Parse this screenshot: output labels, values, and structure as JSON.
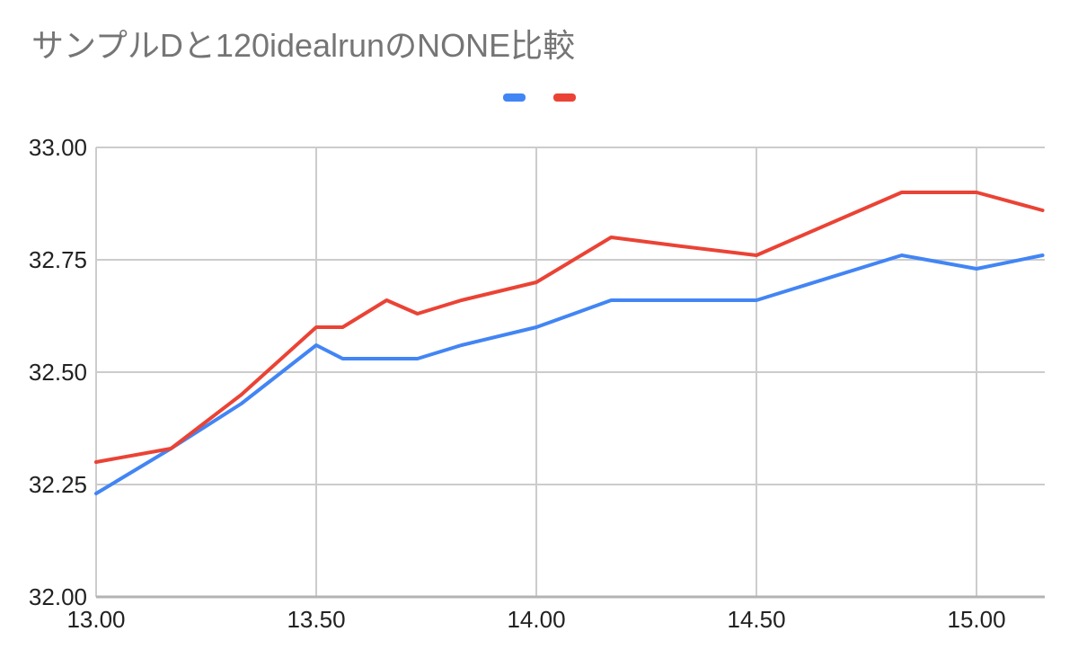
{
  "title": "サンプルDと120idealrunのNONE比較",
  "colors": {
    "background": "#ffffff",
    "title_text": "#757575",
    "axis_text": "#222222",
    "gridline": "#cccccc",
    "axis_line": "#b3b3b3",
    "series_blue": "#4285f4",
    "series_red": "#ea4335"
  },
  "legend": {
    "items": [
      {
        "label": "",
        "color": "#4285f4"
      },
      {
        "label": "",
        "color": "#ea4335"
      }
    ]
  },
  "chart_data": {
    "type": "line",
    "title": "サンプルDと120idealrunのNONE比較",
    "xlabel": "",
    "ylabel": "",
    "x": [
      13.0,
      13.17,
      13.33,
      13.5,
      13.56,
      13.66,
      13.73,
      13.83,
      14.0,
      14.17,
      14.33,
      14.5,
      14.83,
      15.0,
      15.15
    ],
    "series": [
      {
        "name": "",
        "color": "#4285f4",
        "values": [
          32.23,
          32.33,
          32.43,
          32.56,
          32.53,
          32.53,
          32.53,
          32.56,
          32.6,
          32.66,
          32.66,
          32.66,
          32.76,
          32.73,
          32.76
        ]
      },
      {
        "name": "",
        "color": "#ea4335",
        "values": [
          32.3,
          32.33,
          32.45,
          32.6,
          32.6,
          32.66,
          32.63,
          32.66,
          32.7,
          32.8,
          32.78,
          32.76,
          32.9,
          32.9,
          32.86
        ]
      }
    ],
    "xlim": [
      13.0,
      15.155
    ],
    "ylim": [
      32.0,
      33.0
    ],
    "x_ticks": [
      13.0,
      13.5,
      14.0,
      14.5,
      15.0
    ],
    "y_ticks": [
      32.0,
      32.25,
      32.5,
      32.75,
      33.0
    ],
    "x_tick_labels": [
      "13.00",
      "13.50",
      "14.00",
      "14.50",
      "15.00"
    ],
    "y_tick_labels": [
      "32.00",
      "32.25",
      "32.50",
      "32.75",
      "33.00"
    ],
    "grid": true,
    "legend_position": "top-center"
  }
}
